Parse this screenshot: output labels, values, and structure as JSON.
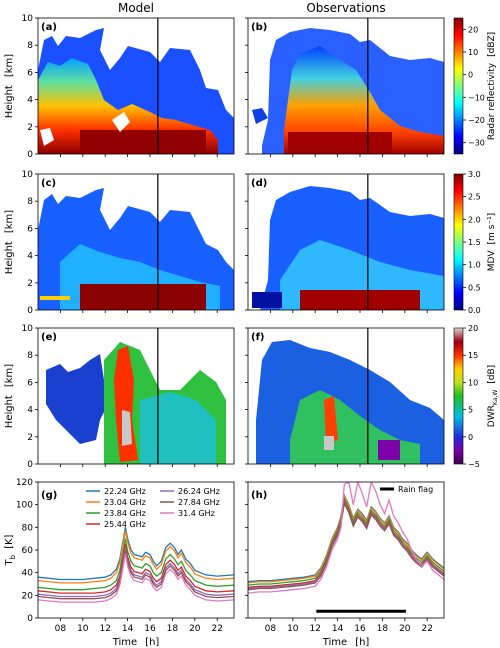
{
  "columns": {
    "left": "Model",
    "right": "Observations"
  },
  "axis": {
    "height_label": "Height",
    "height_unit": "[km]",
    "tb_label": "T",
    "tb_sub": "b",
    "tb_unit": "[K]",
    "time_label": "Time",
    "time_unit": "[h]"
  },
  "panels": {
    "a": "(a)",
    "b": "(b)",
    "c": "(c)",
    "d": "(d)",
    "e": "(e)",
    "f": "(f)",
    "g": "(g)",
    "h": "(h)"
  },
  "colorbars": [
    {
      "label": "Radar reflectivity",
      "unit": "[dBZ]",
      "ticks": [
        "20",
        "10",
        "0",
        "−10",
        "−20",
        "−30"
      ],
      "range": [
        -35,
        25
      ],
      "tick_values": [
        20,
        10,
        0,
        -10,
        -20,
        -30
      ],
      "colormap": "jet"
    },
    {
      "label": "MDV",
      "unit": "[m s⁻¹]",
      "ticks": [
        "3.0",
        "2.5",
        "2.0",
        "1.5",
        "1.0",
        "0.5",
        "0.0"
      ],
      "range": [
        0,
        3
      ],
      "tick_values": [
        3.0,
        2.5,
        2.0,
        1.5,
        1.0,
        0.5,
        0.0
      ],
      "colormap": "jet"
    },
    {
      "label": "DWR",
      "label_sub": "Ka,W",
      "unit": "[dB]",
      "ticks": [
        "20",
        "15",
        "10",
        "5",
        "0",
        "−5"
      ],
      "range": [
        -5,
        20
      ],
      "tick_values": [
        20,
        15,
        10,
        5,
        0,
        -5
      ],
      "colormap": "purple-to-grey"
    }
  ],
  "colors": {
    "ch1": "#1f77b4",
    "ch2": "#ff7f0e",
    "ch3": "#2ca02c",
    "ch4": "#d62728",
    "ch5": "#9467bd",
    "ch6": "#8c564b",
    "ch7": "#e377c2",
    "rain_flag": "#000000",
    "divider": "#000000"
  },
  "legend": {
    "channels_col1": [
      "22.24 GHz",
      "23.04 GHz",
      "23.84 GHz",
      "25.44 GHz"
    ],
    "channels_col2": [
      "26.24 GHz",
      "27.84 GHz",
      "31.4 GHz"
    ],
    "rain_flag": "Rain flag"
  },
  "chart_data": [
    {
      "type": "heatmap",
      "panel": "(a)",
      "column": "Model",
      "variable": "Radar reflectivity",
      "unit": "dBZ",
      "ylabel": "Height [km]",
      "xlim": [
        6,
        23.5
      ],
      "ylim": [
        0,
        10
      ],
      "yticks": [
        0,
        2,
        4,
        6,
        8,
        10
      ],
      "marker_time": 16.7
    },
    {
      "type": "heatmap",
      "panel": "(b)",
      "column": "Observations",
      "variable": "Radar reflectivity",
      "unit": "dBZ",
      "xlim": [
        6,
        23.5
      ],
      "ylim": [
        0,
        10
      ],
      "marker_time": 16.7
    },
    {
      "type": "heatmap",
      "panel": "(c)",
      "column": "Model",
      "variable": "MDV",
      "unit": "m s-1",
      "ylabel": "Height [km]",
      "xlim": [
        6,
        23.5
      ],
      "ylim": [
        0,
        10
      ],
      "yticks": [
        0,
        2,
        4,
        6,
        8,
        10
      ],
      "marker_time": 16.7
    },
    {
      "type": "heatmap",
      "panel": "(d)",
      "column": "Observations",
      "variable": "MDV",
      "unit": "m s-1",
      "xlim": [
        6,
        23.5
      ],
      "ylim": [
        0,
        10
      ],
      "marker_time": 16.7
    },
    {
      "type": "heatmap",
      "panel": "(e)",
      "column": "Model",
      "variable": "DWR Ka,W",
      "unit": "dB",
      "ylabel": "Height [km]",
      "xlim": [
        6,
        23.5
      ],
      "ylim": [
        0,
        10
      ],
      "yticks": [
        0,
        2,
        4,
        6,
        8,
        10
      ],
      "marker_time": 16.7
    },
    {
      "type": "heatmap",
      "panel": "(f)",
      "column": "Observations",
      "variable": "DWR Ka,W",
      "unit": "dB",
      "xlim": [
        6,
        23.5
      ],
      "ylim": [
        0,
        10
      ],
      "marker_time": 16.7
    },
    {
      "type": "line",
      "panel": "(g)",
      "column": "Model",
      "ylabel": "Tb [K]",
      "xlabel": "Time [h]",
      "xlim": [
        6,
        23.5
      ],
      "ylim": [
        0,
        120
      ],
      "yticks": [
        0,
        20,
        40,
        60,
        80,
        100,
        120
      ],
      "xticks": [
        "08",
        "10",
        "12",
        "14",
        "16",
        "18",
        "20",
        "22"
      ],
      "xtick_values": [
        8,
        10,
        12,
        14,
        16,
        18,
        20,
        22
      ],
      "x": [
        6,
        8,
        10,
        11,
        12,
        12.5,
        13,
        13.3,
        13.6,
        13.8,
        14,
        14.3,
        14.6,
        15,
        15.3,
        15.6,
        16,
        16.3,
        16.6,
        17,
        17.4,
        17.8,
        18.2,
        18.5,
        18.8,
        19.2,
        19.6,
        20,
        20.5,
        21,
        22,
        23.5
      ],
      "series": [
        {
          "name": "22.24 GHz",
          "values": [
            36,
            34,
            34,
            35,
            36,
            38,
            43,
            52,
            68,
            80,
            70,
            60,
            56,
            55,
            54,
            58,
            56,
            50,
            46,
            50,
            62,
            66,
            62,
            56,
            60,
            52,
            48,
            42,
            40,
            38,
            37,
            38
          ]
        },
        {
          "name": "23.04 GHz",
          "values": [
            33,
            31,
            31,
            32,
            33,
            35,
            40,
            49,
            65,
            77,
            67,
            57,
            53,
            52,
            51,
            55,
            53,
            47,
            43,
            47,
            59,
            63,
            59,
            53,
            57,
            49,
            45,
            39,
            37,
            35,
            34,
            35
          ]
        },
        {
          "name": "23.84 GHz",
          "values": [
            27,
            25,
            25,
            26,
            27,
            29,
            33,
            42,
            58,
            70,
            59,
            50,
            46,
            45,
            44,
            48,
            46,
            40,
            37,
            40,
            52,
            56,
            52,
            47,
            50,
            42,
            38,
            33,
            31,
            29,
            28,
            29
          ]
        },
        {
          "name": "25.44 GHz",
          "values": [
            24,
            22,
            22,
            22,
            23,
            25,
            29,
            37,
            53,
            65,
            54,
            45,
            41,
            40,
            39,
            43,
            41,
            35,
            32,
            35,
            47,
            51,
            47,
            42,
            45,
            37,
            33,
            28,
            26,
            24,
            23,
            24
          ]
        },
        {
          "name": "26.24 GHz",
          "values": [
            21,
            19,
            19,
            19,
            20,
            22,
            26,
            34,
            50,
            62,
            51,
            42,
            38,
            37,
            36,
            40,
            38,
            32,
            29,
            32,
            44,
            48,
            44,
            39,
            42,
            34,
            30,
            25,
            23,
            21,
            20,
            21
          ]
        },
        {
          "name": "27.84 GHz",
          "values": [
            19,
            17,
            17,
            17,
            18,
            20,
            24,
            32,
            48,
            60,
            49,
            40,
            36,
            35,
            34,
            38,
            36,
            30,
            27,
            30,
            42,
            46,
            42,
            37,
            40,
            32,
            28,
            23,
            21,
            19,
            18,
            19
          ]
        },
        {
          "name": "31.4 GHz",
          "values": [
            16,
            14,
            14,
            14,
            15,
            17,
            21,
            29,
            45,
            57,
            46,
            37,
            33,
            32,
            31,
            35,
            33,
            27,
            24,
            27,
            39,
            43,
            39,
            34,
            37,
            29,
            25,
            20,
            18,
            16,
            15,
            16
          ]
        }
      ]
    },
    {
      "type": "line",
      "panel": "(h)",
      "column": "Observations",
      "xlabel": "Time [h]",
      "xlim": [
        6,
        23.5
      ],
      "ylim": [
        0,
        120
      ],
      "xticks": [
        "08",
        "10",
        "12",
        "14",
        "16",
        "18",
        "20",
        "22"
      ],
      "xtick_values": [
        8,
        10,
        12,
        14,
        16,
        18,
        20,
        22
      ],
      "rain_flag": {
        "start": 12.1,
        "end": 20.1,
        "value": 6
      },
      "x": [
        6,
        7,
        8,
        9,
        10,
        11,
        11.5,
        12,
        12.5,
        13,
        13.5,
        14,
        14.3,
        14.6,
        15,
        15.4,
        15.8,
        16.2,
        16.6,
        17,
        17.4,
        17.8,
        18.2,
        18.6,
        19,
        19.4,
        19.8,
        20.2,
        20.6,
        21,
        21.5,
        22,
        22.5,
        23,
        23.5
      ],
      "series": [
        {
          "name": "22.24 GHz",
          "values": [
            32,
            33,
            33,
            34,
            35,
            36,
            37,
            38,
            44,
            55,
            70,
            80,
            90,
            108,
            100,
            88,
            96,
            92,
            86,
            98,
            94,
            88,
            84,
            90,
            80,
            76,
            70,
            66,
            60,
            56,
            52,
            58,
            52,
            48,
            44
          ]
        },
        {
          "name": "23.04 GHz",
          "values": [
            31,
            32,
            32,
            33,
            34,
            35,
            36,
            37,
            43,
            54,
            69,
            79,
            89,
            107,
            99,
            87,
            95,
            91,
            85,
            97,
            93,
            87,
            83,
            89,
            79,
            75,
            69,
            65,
            59,
            55,
            51,
            57,
            51,
            47,
            43
          ]
        },
        {
          "name": "23.84 GHz",
          "values": [
            29,
            30,
            30,
            31,
            32,
            33,
            34,
            35,
            41,
            52,
            67,
            77,
            87,
            105,
            97,
            85,
            93,
            89,
            83,
            95,
            91,
            85,
            81,
            87,
            77,
            73,
            67,
            63,
            57,
            53,
            49,
            55,
            49,
            45,
            41
          ]
        },
        {
          "name": "25.44 GHz",
          "values": [
            27,
            28,
            28,
            29,
            30,
            31,
            32,
            33,
            39,
            50,
            65,
            75,
            85,
            103,
            95,
            83,
            91,
            87,
            81,
            93,
            89,
            83,
            79,
            85,
            75,
            71,
            65,
            61,
            55,
            51,
            47,
            53,
            47,
            43,
            39
          ]
        },
        {
          "name": "26.24 GHz",
          "values": [
            26,
            27,
            27,
            28,
            29,
            30,
            31,
            32,
            38,
            49,
            64,
            74,
            84,
            102,
            94,
            82,
            90,
            86,
            80,
            92,
            88,
            82,
            78,
            84,
            74,
            70,
            64,
            60,
            54,
            50,
            46,
            52,
            46,
            42,
            38
          ]
        },
        {
          "name": "27.84 GHz",
          "values": [
            25,
            26,
            26,
            27,
            28,
            29,
            30,
            31,
            37,
            48,
            63,
            73,
            83,
            101,
            93,
            81,
            89,
            85,
            79,
            91,
            87,
            81,
            77,
            83,
            73,
            69,
            63,
            59,
            53,
            49,
            45,
            51,
            45,
            41,
            37
          ]
        },
        {
          "name": "31.4 GHz",
          "values": [
            22,
            23,
            23,
            24,
            25,
            26,
            27,
            28,
            34,
            45,
            60,
            70,
            80,
            118,
            120,
            100,
            120,
            110,
            98,
            120,
            112,
            100,
            92,
            104,
            90,
            84,
            76,
            70,
            60,
            52,
            46,
            50,
            42,
            38,
            34
          ]
        }
      ]
    }
  ]
}
